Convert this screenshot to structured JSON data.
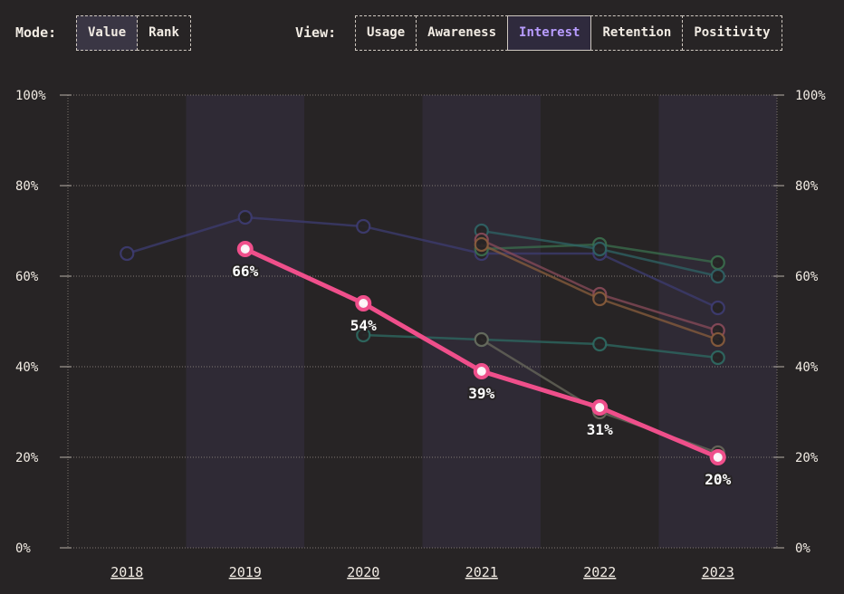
{
  "controls": {
    "mode_label": "Mode:",
    "mode_options": [
      "Value",
      "Rank"
    ],
    "mode_selected": "Value",
    "view_label": "View:",
    "view_options": [
      "Usage",
      "Awareness",
      "Interest",
      "Retention",
      "Positivity"
    ],
    "view_selected": "Interest"
  },
  "colors": {
    "background": "#272425",
    "band": "#2f2a35",
    "highlight": "#ef4f8b",
    "accent_active": "#b89cff"
  },
  "chart_data": {
    "type": "line",
    "x": [
      "2018",
      "2019",
      "2020",
      "2021",
      "2022",
      "2023"
    ],
    "y_ticks": [
      "0%",
      "20%",
      "40%",
      "60%",
      "80%",
      "100%"
    ],
    "ylim": [
      0,
      100
    ],
    "y_unit": "%",
    "grid": true,
    "axis_labels_both_sides": true,
    "highlighted_series_index": 0,
    "series": [
      {
        "color": "#ef4f8b",
        "values": [
          null,
          66,
          54,
          39,
          31,
          20
        ],
        "labels": [
          null,
          "66%",
          "54%",
          "39%",
          "31%",
          "20%"
        ]
      },
      {
        "color": "#3e3c72",
        "values": [
          65,
          73,
          71,
          65,
          65,
          53
        ]
      },
      {
        "color": "#2e6b63",
        "values": [
          null,
          null,
          47,
          46,
          45,
          42
        ]
      },
      {
        "color": "#3b6f4d",
        "values": [
          null,
          null,
          null,
          66,
          67,
          63
        ]
      },
      {
        "color": "#2f6466",
        "values": [
          null,
          null,
          null,
          70,
          66,
          60
        ]
      },
      {
        "color": "#8a4b5a",
        "values": [
          null,
          null,
          null,
          68,
          56,
          48
        ]
      },
      {
        "color": "#8a5d3c",
        "values": [
          null,
          null,
          null,
          67,
          55,
          46
        ]
      },
      {
        "color": "#6a6a5c",
        "values": [
          null,
          null,
          null,
          46,
          30,
          21
        ]
      }
    ]
  }
}
